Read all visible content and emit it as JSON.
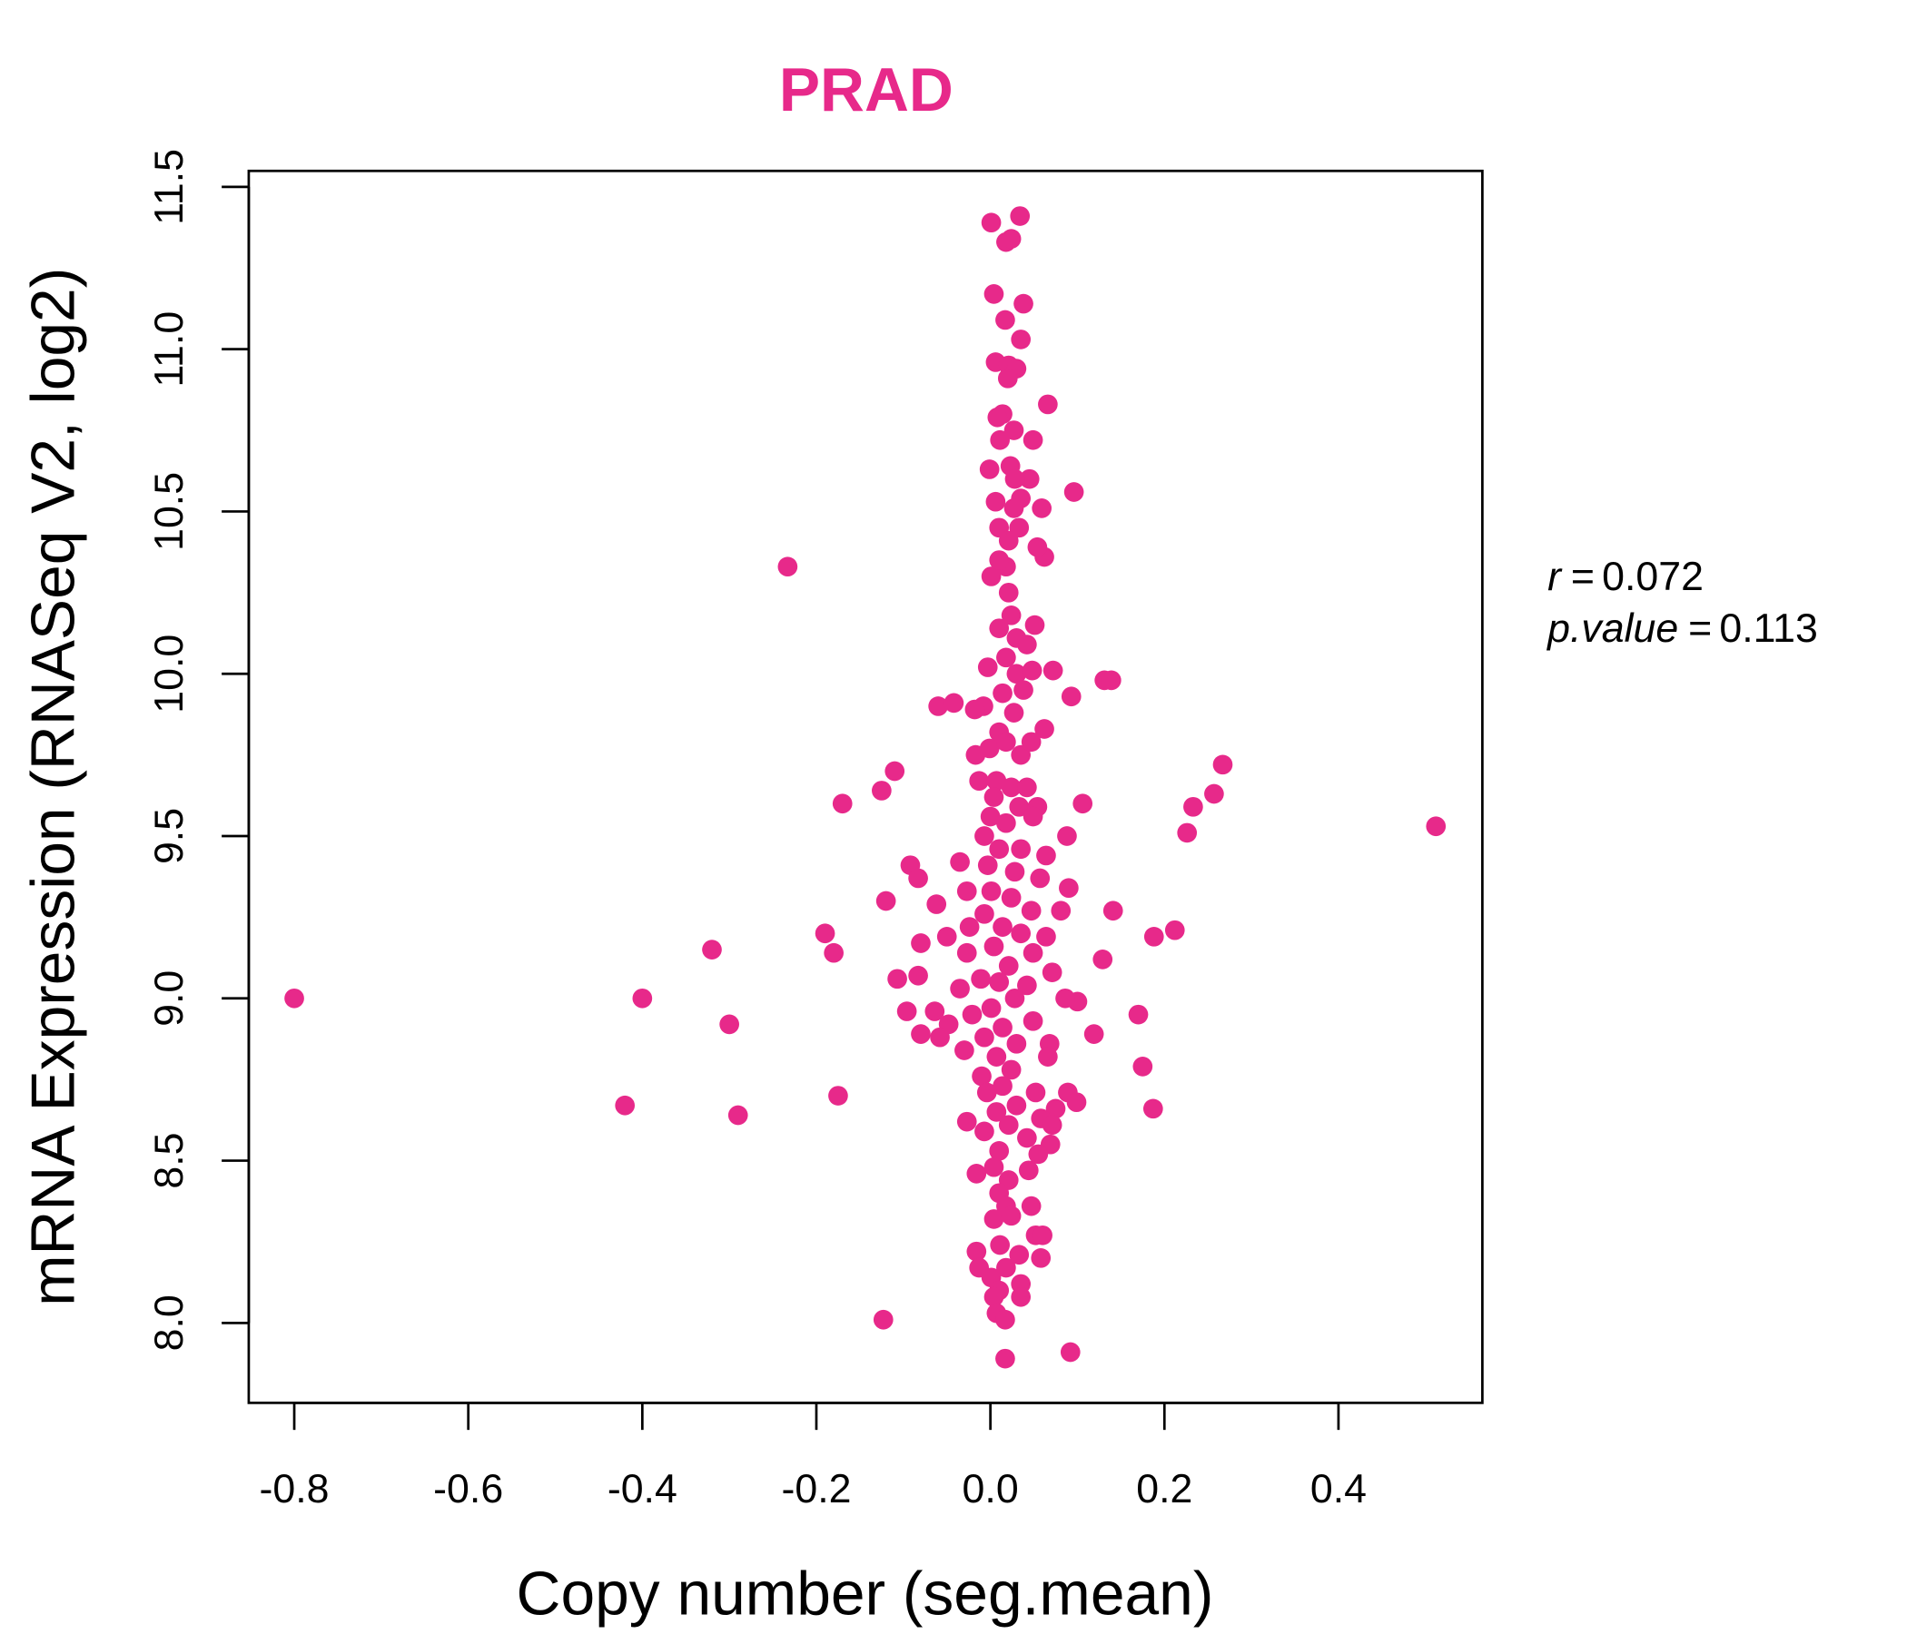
{
  "chart_data": {
    "type": "scatter",
    "title": "PRAD",
    "xlabel": "Copy number (seg.mean)",
    "ylabel": "mRNA Expression (RNASeq V2, log2)",
    "xlim": [
      -0.85,
      0.57
    ],
    "ylim": [
      7.75,
      11.55
    ],
    "xticks": [
      -0.8,
      -0.6,
      -0.4,
      -0.2,
      0.0,
      0.2,
      0.4
    ],
    "xtick_labels": [
      "-0.8",
      "-0.6",
      "-0.4",
      "-0.2",
      "0.0",
      "0.2",
      "0.4"
    ],
    "yticks": [
      8.0,
      8.5,
      9.0,
      9.5,
      10.0,
      10.5,
      11.0,
      11.5
    ],
    "ytick_labels": [
      "8.0",
      "8.5",
      "9.0",
      "9.5",
      "10.0",
      "10.5",
      "11.0",
      "11.5"
    ],
    "grid": false,
    "color": "#E7298A",
    "annotation": {
      "r_label": "r",
      "r_value": "0.072",
      "p_label": "p.value",
      "p_value": "0.113"
    },
    "points": [
      [
        -0.8,
        9.0
      ],
      [
        -0.233,
        10.33
      ],
      [
        -0.4,
        9.0
      ],
      [
        -0.42,
        8.67
      ],
      [
        -0.32,
        9.15
      ],
      [
        -0.3,
        8.92
      ],
      [
        -0.29,
        8.64
      ],
      [
        -0.19,
        9.2
      ],
      [
        -0.18,
        9.14
      ],
      [
        -0.17,
        9.6
      ],
      [
        -0.175,
        8.7
      ],
      [
        -0.125,
        9.64
      ],
      [
        -0.11,
        9.7
      ],
      [
        -0.12,
        9.3
      ],
      [
        -0.123,
        8.01
      ],
      [
        -0.107,
        9.06
      ],
      [
        -0.092,
        9.41
      ],
      [
        -0.083,
        9.37
      ],
      [
        -0.08,
        9.17
      ],
      [
        -0.083,
        9.07
      ],
      [
        -0.096,
        8.96
      ],
      [
        -0.08,
        8.89
      ],
      [
        -0.062,
        9.29
      ],
      [
        -0.06,
        9.9
      ],
      [
        -0.042,
        9.91
      ],
      [
        -0.05,
        9.19
      ],
      [
        -0.035,
        9.42
      ],
      [
        -0.027,
        9.33
      ],
      [
        -0.064,
        8.96
      ],
      [
        -0.048,
        8.92
      ],
      [
        -0.058,
        8.88
      ],
      [
        -0.027,
        8.62
      ],
      [
        -0.016,
        8.46
      ],
      [
        0.512,
        9.53
      ],
      [
        0.267,
        9.72
      ],
      [
        0.257,
        9.63
      ],
      [
        0.233,
        9.59
      ],
      [
        0.226,
        9.51
      ],
      [
        0.212,
        9.21
      ],
      [
        0.188,
        9.19
      ],
      [
        0.17,
        8.95
      ],
      [
        0.175,
        8.79
      ],
      [
        0.187,
        8.66
      ],
      [
        0.129,
        9.12
      ],
      [
        0.119,
        8.89
      ],
      [
        0.141,
        9.27
      ],
      [
        0.131,
        9.98
      ],
      [
        0.139,
        9.98
      ],
      [
        0.106,
        9.6
      ],
      [
        0.093,
        9.93
      ],
      [
        0.096,
        10.56
      ],
      [
        0.066,
        10.83
      ],
      [
        0.092,
        7.91
      ],
      [
        0.017,
        7.89
      ],
      [
        0.088,
        9.5
      ],
      [
        0.09,
        9.34
      ],
      [
        0.1,
        8.99
      ],
      [
        0.086,
        9.0
      ],
      [
        0.089,
        8.71
      ],
      [
        0.099,
        8.68
      ],
      [
        0.072,
        10.01
      ],
      [
        0.062,
        9.83
      ],
      [
        0.062,
        10.36
      ],
      [
        0.054,
        10.39
      ],
      [
        0.059,
        10.51
      ],
      [
        0.051,
        10.15
      ],
      [
        0.049,
        10.72
      ],
      [
        0.045,
        10.6
      ],
      [
        0.001,
        11.39
      ],
      [
        0.034,
        11.41
      ],
      [
        0.018,
        11.33
      ],
      [
        0.024,
        11.34
      ],
      [
        0.004,
        11.17
      ],
      [
        0.038,
        11.14
      ],
      [
        0.017,
        11.09
      ],
      [
        0.035,
        11.03
      ],
      [
        0.006,
        10.96
      ],
      [
        0.021,
        10.95
      ],
      [
        0.03,
        10.94
      ],
      [
        0.02,
        10.91
      ],
      [
        0.014,
        10.8
      ],
      [
        0.008,
        10.79
      ],
      [
        0.027,
        10.75
      ],
      [
        0.011,
        10.72
      ],
      [
        -0.001,
        10.63
      ],
      [
        0.023,
        10.64
      ],
      [
        0.028,
        10.6
      ],
      [
        0.006,
        10.53
      ],
      [
        0.035,
        10.54
      ],
      [
        0.027,
        10.51
      ],
      [
        0.01,
        10.45
      ],
      [
        0.033,
        10.45
      ],
      [
        0.021,
        10.41
      ],
      [
        0.001,
        10.3
      ],
      [
        0.018,
        10.33
      ],
      [
        0.01,
        10.35
      ],
      [
        0.021,
        10.25
      ],
      [
        0.024,
        10.18
      ],
      [
        0.01,
        10.14
      ],
      [
        0.03,
        10.11
      ],
      [
        0.042,
        10.09
      ],
      [
        0.018,
        10.05
      ],
      [
        -0.003,
        10.02
      ],
      [
        0.03,
        10.0
      ],
      [
        0.048,
        10.01
      ],
      [
        0.038,
        9.95
      ],
      [
        0.014,
        9.94
      ],
      [
        0.027,
        9.88
      ],
      [
        -0.008,
        9.9
      ],
      [
        -0.018,
        9.89
      ],
      [
        0.01,
        9.82
      ],
      [
        -0.017,
        9.75
      ],
      [
        -0.001,
        9.77
      ],
      [
        0.018,
        9.79
      ],
      [
        0.035,
        9.75
      ],
      [
        0.047,
        9.79
      ],
      [
        -0.013,
        9.67
      ],
      [
        0.007,
        9.67
      ],
      [
        0.024,
        9.65
      ],
      [
        0.042,
        9.65
      ],
      [
        0.004,
        9.62
      ],
      [
        0.033,
        9.59
      ],
      [
        0.054,
        9.59
      ],
      [
        0.0,
        9.56
      ],
      [
        0.018,
        9.54
      ],
      [
        0.049,
        9.56
      ],
      [
        -0.007,
        9.5
      ],
      [
        0.01,
        9.46
      ],
      [
        0.035,
        9.46
      ],
      [
        0.064,
        9.44
      ],
      [
        -0.003,
        9.41
      ],
      [
        0.028,
        9.39
      ],
      [
        0.057,
        9.37
      ],
      [
        0.001,
        9.33
      ],
      [
        0.024,
        9.31
      ],
      [
        0.047,
        9.27
      ],
      [
        0.081,
        9.27
      ],
      [
        -0.007,
        9.26
      ],
      [
        0.014,
        9.22
      ],
      [
        -0.024,
        9.22
      ],
      [
        0.035,
        9.2
      ],
      [
        0.064,
        9.19
      ],
      [
        0.004,
        9.16
      ],
      [
        -0.027,
        9.14
      ],
      [
        0.049,
        9.14
      ],
      [
        0.021,
        9.1
      ],
      [
        0.071,
        9.08
      ],
      [
        -0.011,
        9.06
      ],
      [
        0.01,
        9.05
      ],
      [
        0.042,
        9.04
      ],
      [
        -0.035,
        9.03
      ],
      [
        0.028,
        9.0
      ],
      [
        0.001,
        8.97
      ],
      [
        -0.021,
        8.95
      ],
      [
        0.049,
        8.93
      ],
      [
        0.014,
        8.91
      ],
      [
        -0.007,
        8.88
      ],
      [
        0.03,
        8.86
      ],
      [
        0.068,
        8.86
      ],
      [
        -0.03,
        8.84
      ],
      [
        0.007,
        8.82
      ],
      [
        0.066,
        8.82
      ],
      [
        0.024,
        8.78
      ],
      [
        -0.01,
        8.76
      ],
      [
        0.014,
        8.73
      ],
      [
        0.052,
        8.71
      ],
      [
        -0.004,
        8.71
      ],
      [
        0.03,
        8.67
      ],
      [
        0.075,
        8.66
      ],
      [
        0.007,
        8.65
      ],
      [
        0.021,
        8.61
      ],
      [
        0.058,
        8.63
      ],
      [
        -0.007,
        8.59
      ],
      [
        0.071,
        8.61
      ],
      [
        0.042,
        8.57
      ],
      [
        0.069,
        8.55
      ],
      [
        0.01,
        8.53
      ],
      [
        0.055,
        8.52
      ],
      [
        0.004,
        8.48
      ],
      [
        0.044,
        8.47
      ],
      [
        0.021,
        8.44
      ],
      [
        0.01,
        8.4
      ],
      [
        0.018,
        8.36
      ],
      [
        0.047,
        8.36
      ],
      [
        0.004,
        8.32
      ],
      [
        0.024,
        8.33
      ],
      [
        0.052,
        8.27
      ],
      [
        0.06,
        8.27
      ],
      [
        -0.016,
        8.22
      ],
      [
        0.011,
        8.24
      ],
      [
        0.033,
        8.21
      ],
      [
        0.058,
        8.2
      ],
      [
        -0.013,
        8.17
      ],
      [
        0.018,
        8.17
      ],
      [
        0.001,
        8.14
      ],
      [
        0.035,
        8.12
      ],
      [
        0.01,
        8.1
      ],
      [
        0.004,
        8.08
      ],
      [
        0.035,
        8.08
      ],
      [
        0.007,
        8.03
      ],
      [
        0.017,
        8.01
      ]
    ]
  }
}
